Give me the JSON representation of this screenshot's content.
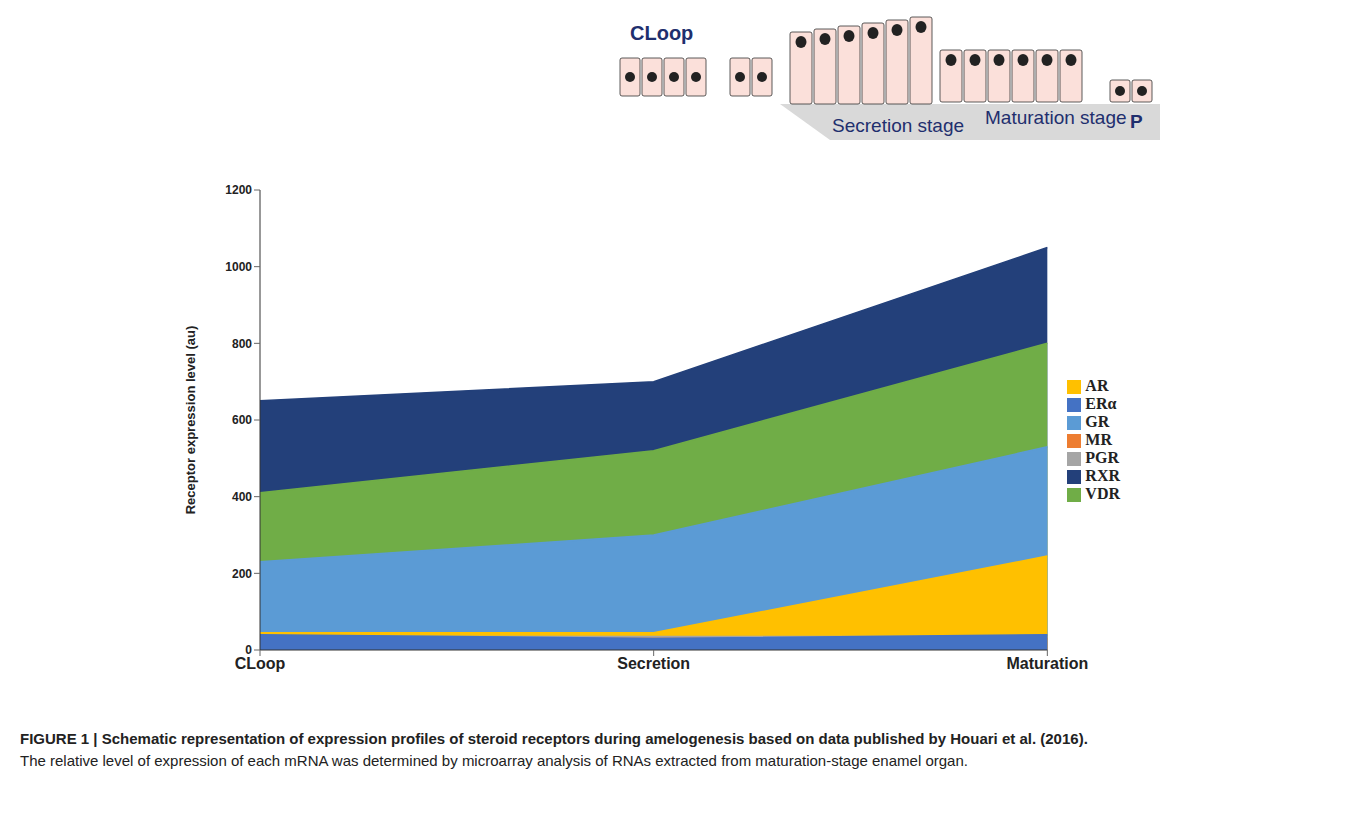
{
  "chart_data": {
    "type": "area",
    "title": "FIGURE 1 | Schematic representation of expression profiles of steroid receptors during amelogenesis based on data published by Houari et al. (2016).",
    "subtitle": "The relative level of expression of each mRNA was determined by microarray analysis of RNAs extracted from maturation-stage enamel organ.",
    "y_label": "Receptor expression level (au)",
    "categories": [
      "CLoop",
      "Secretion",
      "Maturation"
    ],
    "series": [
      {
        "name": "RXR",
        "color": "#23407a",
        "values": [
          650,
          700,
          1050
        ]
      },
      {
        "name": "VDR",
        "color": "#70ad47",
        "values": [
          410,
          520,
          800
        ]
      },
      {
        "name": "GR",
        "color": "#5b9bd5",
        "values": [
          230,
          300,
          530
        ]
      },
      {
        "name": "AR",
        "color": "#ffc000",
        "values": [
          45,
          45,
          245
        ]
      },
      {
        "name": "PGR",
        "color": "#a5a5a5",
        "values": [
          35,
          35,
          35
        ]
      },
      {
        "name": "MR",
        "color": "#ed7d31",
        "values": [
          30,
          30,
          30
        ]
      },
      {
        "name": "ERα",
        "color": "#4472c4",
        "values": [
          40,
          30,
          40
        ]
      }
    ],
    "ylim": [
      0,
      1200
    ],
    "yticks": [
      0,
      200,
      400,
      600,
      800,
      1000,
      1200
    ],
    "grid": false,
    "legend": "right"
  },
  "diagram": {
    "labels": [
      "CLoop",
      "Secretion stage",
      "Maturation stage",
      "P"
    ]
  }
}
